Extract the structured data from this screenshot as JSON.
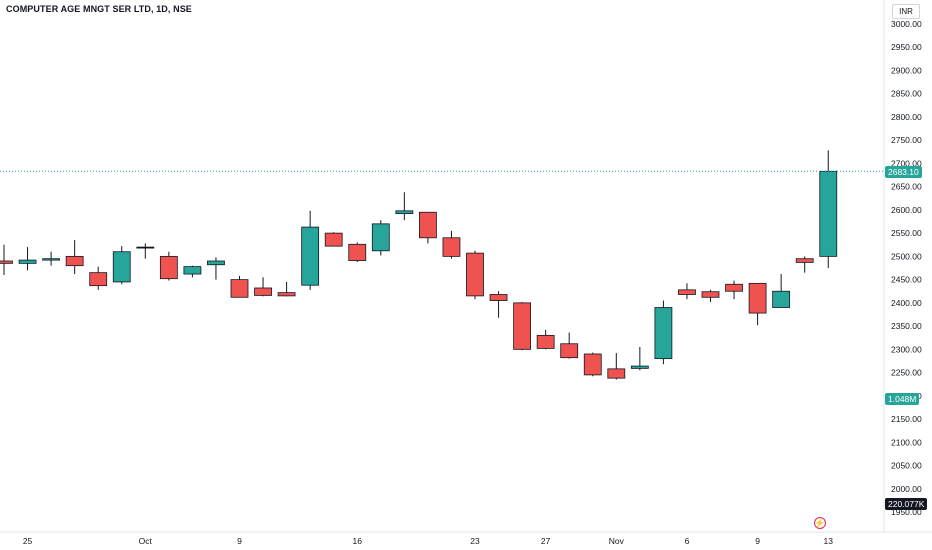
{
  "header": {
    "title": "COMPUTER AGE MNGT SER LTD, 1D, NSE"
  },
  "currency": "INR",
  "price_tags": {
    "last": "2683.10",
    "volume_1": "1.048M",
    "volume_2": "220.077K"
  },
  "icons": {
    "logo": "lightning-icon"
  },
  "colors": {
    "up": "#26a69a",
    "down": "#ef5350",
    "neutral": "#131722",
    "last_line": "#26a69a"
  },
  "chart_data": {
    "type": "candlestick",
    "title": "COMPUTER AGE MNGT SER LTD, 1D, NSE",
    "ylim": [
      1950,
      3000
    ],
    "y_ticks": [
      "3000.00",
      "2950.00",
      "2900.00",
      "2850.00",
      "2800.00",
      "2750.00",
      "2700.00",
      "2650.00",
      "2600.00",
      "2550.00",
      "2500.00",
      "2450.00",
      "2400.00",
      "2350.00",
      "2300.00",
      "2250.00",
      "2200.00",
      "2150.00",
      "2100.00",
      "2050.00",
      "2000.00",
      "1950.00"
    ],
    "x_ticks": [
      {
        "label": "25",
        "index": 1
      },
      {
        "label": "Oct",
        "index": 6
      },
      {
        "label": "9",
        "index": 10
      },
      {
        "label": "16",
        "index": 15
      },
      {
        "label": "23",
        "index": 20
      },
      {
        "label": "27",
        "index": 23
      },
      {
        "label": "Nov",
        "index": 26
      },
      {
        "label": "6",
        "index": 29
      },
      {
        "label": "9",
        "index": 32
      },
      {
        "label": "13",
        "index": 35
      }
    ],
    "last_price": 2683.1,
    "candles": [
      {
        "o": 2490,
        "h": 2525,
        "l": 2460,
        "c": 2485
      },
      {
        "o": 2485,
        "h": 2520,
        "l": 2470,
        "c": 2492
      },
      {
        "o": 2492,
        "h": 2510,
        "l": 2480,
        "c": 2495
      },
      {
        "o": 2500,
        "h": 2535,
        "l": 2462,
        "c": 2480
      },
      {
        "o": 2465,
        "h": 2478,
        "l": 2428,
        "c": 2437
      },
      {
        "o": 2445,
        "h": 2522,
        "l": 2440,
        "c": 2510
      },
      {
        "o": 2520,
        "h": 2528,
        "l": 2495,
        "c": 2520
      },
      {
        "o": 2500,
        "h": 2510,
        "l": 2448,
        "c": 2452
      },
      {
        "o": 2462,
        "h": 2480,
        "l": 2455,
        "c": 2478
      },
      {
        "o": 2482,
        "h": 2498,
        "l": 2450,
        "c": 2490
      },
      {
        "o": 2450,
        "h": 2458,
        "l": 2412,
        "c": 2412
      },
      {
        "o": 2432,
        "h": 2455,
        "l": 2414,
        "c": 2416
      },
      {
        "o": 2422,
        "h": 2445,
        "l": 2414,
        "c": 2415
      },
      {
        "o": 2438,
        "h": 2598,
        "l": 2428,
        "c": 2563
      },
      {
        "o": 2550,
        "h": 2552,
        "l": 2522,
        "c": 2522
      },
      {
        "o": 2526,
        "h": 2530,
        "l": 2488,
        "c": 2491
      },
      {
        "o": 2512,
        "h": 2578,
        "l": 2502,
        "c": 2570
      },
      {
        "o": 2592,
        "h": 2638,
        "l": 2578,
        "c": 2598
      },
      {
        "o": 2595,
        "h": 2595,
        "l": 2528,
        "c": 2540
      },
      {
        "o": 2540,
        "h": 2555,
        "l": 2495,
        "c": 2500
      },
      {
        "o": 2507,
        "h": 2512,
        "l": 2408,
        "c": 2415
      },
      {
        "o": 2418,
        "h": 2425,
        "l": 2368,
        "c": 2405
      },
      {
        "o": 2400,
        "h": 2402,
        "l": 2298,
        "c": 2300
      },
      {
        "o": 2330,
        "h": 2342,
        "l": 2300,
        "c": 2302
      },
      {
        "o": 2312,
        "h": 2336,
        "l": 2280,
        "c": 2282
      },
      {
        "o": 2290,
        "h": 2293,
        "l": 2242,
        "c": 2245
      },
      {
        "o": 2258,
        "h": 2292,
        "l": 2235,
        "c": 2238
      },
      {
        "o": 2259,
        "h": 2305,
        "l": 2255,
        "c": 2264
      },
      {
        "o": 2280,
        "h": 2405,
        "l": 2268,
        "c": 2390
      },
      {
        "o": 2428,
        "h": 2442,
        "l": 2408,
        "c": 2418
      },
      {
        "o": 2424,
        "h": 2428,
        "l": 2402,
        "c": 2412
      },
      {
        "o": 2440,
        "h": 2448,
        "l": 2408,
        "c": 2425
      },
      {
        "o": 2442,
        "h": 2442,
        "l": 2352,
        "c": 2378
      },
      {
        "o": 2390,
        "h": 2462,
        "l": 2390,
        "c": 2425
      },
      {
        "o": 2495,
        "h": 2500,
        "l": 2465,
        "c": 2487
      },
      {
        "o": 2500,
        "h": 2728,
        "l": 2475,
        "c": 2683.1
      }
    ]
  }
}
